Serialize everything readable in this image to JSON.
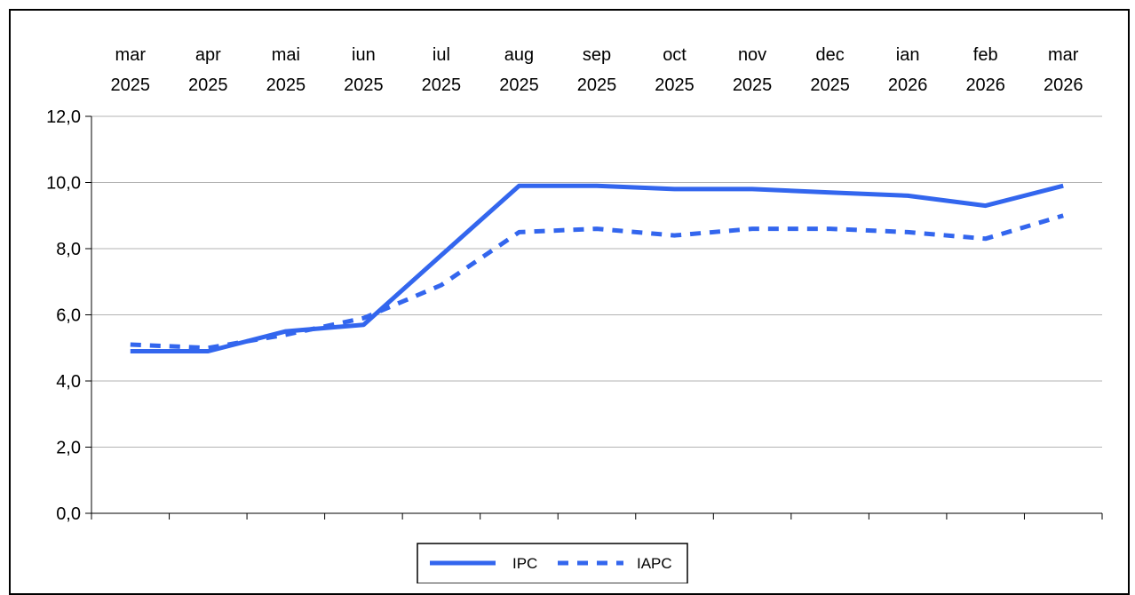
{
  "chart_data": {
    "type": "line",
    "categories": [
      [
        "mar",
        "2025"
      ],
      [
        "apr",
        "2025"
      ],
      [
        "mai",
        "2025"
      ],
      [
        "iun",
        "2025"
      ],
      [
        "iul",
        "2025"
      ],
      [
        "aug",
        "2025"
      ],
      [
        "sep",
        "2025"
      ],
      [
        "oct",
        "2025"
      ],
      [
        "nov",
        "2025"
      ],
      [
        "dec",
        "2025"
      ],
      [
        "ian",
        "2026"
      ],
      [
        "feb",
        "2026"
      ],
      [
        "mar",
        "2026"
      ]
    ],
    "series": [
      {
        "name": "IPC",
        "style": "solid",
        "color": "#3366ee",
        "values": [
          4.9,
          4.9,
          5.5,
          5.7,
          7.8,
          9.9,
          9.9,
          9.8,
          9.8,
          9.7,
          9.6,
          9.3,
          9.9
        ]
      },
      {
        "name": "IAPC",
        "style": "dashed",
        "color": "#3366ee",
        "values": [
          5.1,
          5.0,
          5.4,
          5.9,
          6.9,
          8.5,
          8.6,
          8.4,
          8.6,
          8.6,
          8.5,
          8.3,
          9.0
        ]
      }
    ],
    "yticks": [
      "0,0",
      "2,0",
      "4,0",
      "6,0",
      "8,0",
      "10,0",
      "12,0"
    ],
    "ylim": [
      0,
      12
    ],
    "grid": true,
    "xaxis_position": "top",
    "legend_position": "bottom-center",
    "title": "",
    "xlabel": "",
    "ylabel": ""
  }
}
